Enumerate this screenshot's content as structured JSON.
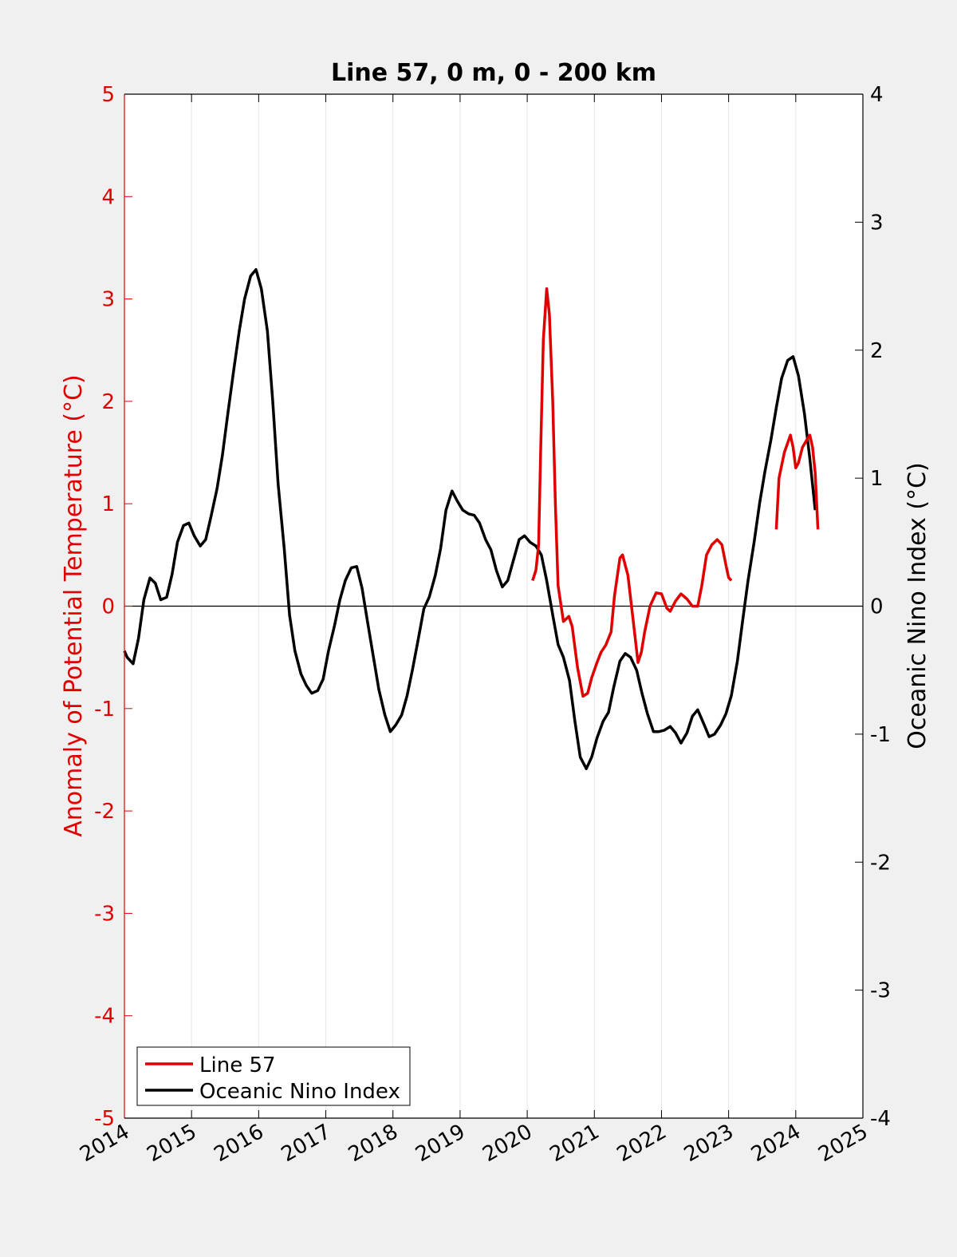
{
  "colors": {
    "line57": "#e00000",
    "oni": "#000000",
    "left_axis": "#e00000",
    "grid": "#e6e6e6",
    "figure_bg": "#f0f0f0",
    "plot_bg": "#ffffff"
  },
  "chart_data": {
    "type": "line",
    "title": "Line 57, 0 m, 0 - 200 km",
    "xlabel": "",
    "ylabel_left": "Anomaly of Potential Temperature (°C)",
    "ylabel_right": "Oceanic Nino Index (°C)",
    "xlim": [
      2014,
      2025
    ],
    "ylim_left": [
      -5,
      5
    ],
    "ylim_right": [
      -4,
      4
    ],
    "x_ticks": [
      "2014",
      "2015",
      "2016",
      "2017",
      "2018",
      "2019",
      "2020",
      "2021",
      "2022",
      "2023",
      "2024",
      "2025"
    ],
    "y_ticks_left": [
      "5",
      "4",
      "3",
      "2",
      "1",
      "0",
      "-1",
      "-2",
      "-3",
      "-4",
      "-5"
    ],
    "y_ticks_right": [
      "4",
      "3",
      "2",
      "1",
      "0",
      "-1",
      "-2",
      "-3",
      "-4"
    ],
    "grid": "vertical",
    "legend_position": "bottom-left",
    "legend": [
      "Line 57",
      "Oceanic Nino Index"
    ],
    "series": [
      {
        "name": "Line 57",
        "axis": "left",
        "segments": [
          [
            [
              2020.08,
              0.25
            ],
            [
              2020.13,
              0.35
            ],
            [
              2020.17,
              0.6
            ],
            [
              2020.2,
              1.5
            ],
            [
              2020.24,
              2.6
            ],
            [
              2020.29,
              3.1
            ],
            [
              2020.33,
              2.85
            ],
            [
              2020.38,
              2.0
            ],
            [
              2020.42,
              1.0
            ],
            [
              2020.46,
              0.2
            ],
            [
              2020.54,
              -0.15
            ],
            [
              2020.62,
              -0.1
            ],
            [
              2020.67,
              -0.2
            ],
            [
              2020.75,
              -0.6
            ],
            [
              2020.83,
              -0.88
            ],
            [
              2020.9,
              -0.85
            ],
            [
              2020.96,
              -0.7
            ],
            [
              2021.04,
              -0.55
            ],
            [
              2021.1,
              -0.45
            ],
            [
              2021.17,
              -0.38
            ],
            [
              2021.25,
              -0.25
            ],
            [
              2021.3,
              0.1
            ],
            [
              2021.38,
              0.47
            ],
            [
              2021.42,
              0.5
            ],
            [
              2021.5,
              0.3
            ],
            [
              2021.58,
              -0.15
            ],
            [
              2021.65,
              -0.55
            ],
            [
              2021.7,
              -0.45
            ],
            [
              2021.75,
              -0.25
            ],
            [
              2021.83,
              0.0
            ],
            [
              2021.92,
              0.13
            ],
            [
              2022.0,
              0.12
            ],
            [
              2022.08,
              -0.02
            ],
            [
              2022.13,
              -0.05
            ],
            [
              2022.21,
              0.05
            ],
            [
              2022.29,
              0.12
            ],
            [
              2022.38,
              0.07
            ],
            [
              2022.46,
              0.0
            ],
            [
              2022.54,
              0.0
            ],
            [
              2022.6,
              0.2
            ],
            [
              2022.67,
              0.5
            ],
            [
              2022.75,
              0.6
            ],
            [
              2022.83,
              0.65
            ],
            [
              2022.9,
              0.6
            ],
            [
              2022.96,
              0.4
            ],
            [
              2023.0,
              0.28
            ],
            [
              2023.04,
              0.25
            ]
          ],
          [
            [
              2023.71,
              0.75
            ],
            [
              2023.75,
              1.25
            ],
            [
              2023.83,
              1.5
            ],
            [
              2023.92,
              1.67
            ],
            [
              2023.96,
              1.55
            ],
            [
              2024.0,
              1.35
            ],
            [
              2024.04,
              1.4
            ],
            [
              2024.1,
              1.55
            ],
            [
              2024.17,
              1.63
            ],
            [
              2024.21,
              1.67
            ],
            [
              2024.25,
              1.55
            ],
            [
              2024.29,
              1.3
            ],
            [
              2024.33,
              0.75
            ]
          ]
        ]
      },
      {
        "name": "Oceanic Nino Index",
        "axis": "right",
        "points": [
          [
            2014.0,
            -0.35
          ],
          [
            2014.04,
            -0.4
          ],
          [
            2014.13,
            -0.45
          ],
          [
            2014.21,
            -0.25
          ],
          [
            2014.29,
            0.05
          ],
          [
            2014.38,
            0.22
          ],
          [
            2014.46,
            0.18
          ],
          [
            2014.54,
            0.05
          ],
          [
            2014.63,
            0.07
          ],
          [
            2014.71,
            0.25
          ],
          [
            2014.79,
            0.5
          ],
          [
            2014.88,
            0.63
          ],
          [
            2014.96,
            0.65
          ],
          [
            2015.04,
            0.55
          ],
          [
            2015.13,
            0.47
          ],
          [
            2015.21,
            0.52
          ],
          [
            2015.29,
            0.7
          ],
          [
            2015.38,
            0.92
          ],
          [
            2015.46,
            1.18
          ],
          [
            2015.54,
            1.5
          ],
          [
            2015.63,
            1.85
          ],
          [
            2015.71,
            2.15
          ],
          [
            2015.79,
            2.4
          ],
          [
            2015.88,
            2.58
          ],
          [
            2015.96,
            2.63
          ],
          [
            2016.04,
            2.48
          ],
          [
            2016.13,
            2.15
          ],
          [
            2016.21,
            1.6
          ],
          [
            2016.29,
            0.95
          ],
          [
            2016.38,
            0.45
          ],
          [
            2016.46,
            -0.07
          ],
          [
            2016.54,
            -0.35
          ],
          [
            2016.63,
            -0.53
          ],
          [
            2016.71,
            -0.62
          ],
          [
            2016.79,
            -0.68
          ],
          [
            2016.88,
            -0.66
          ],
          [
            2016.96,
            -0.57
          ],
          [
            2017.04,
            -0.35
          ],
          [
            2017.13,
            -0.15
          ],
          [
            2017.21,
            0.05
          ],
          [
            2017.29,
            0.2
          ],
          [
            2017.38,
            0.3
          ],
          [
            2017.46,
            0.31
          ],
          [
            2017.54,
            0.14
          ],
          [
            2017.63,
            -0.15
          ],
          [
            2017.71,
            -0.4
          ],
          [
            2017.79,
            -0.65
          ],
          [
            2017.88,
            -0.85
          ],
          [
            2017.96,
            -0.98
          ],
          [
            2018.04,
            -0.93
          ],
          [
            2018.13,
            -0.85
          ],
          [
            2018.21,
            -0.7
          ],
          [
            2018.29,
            -0.5
          ],
          [
            2018.38,
            -0.25
          ],
          [
            2018.46,
            -0.02
          ],
          [
            2018.54,
            0.07
          ],
          [
            2018.63,
            0.24
          ],
          [
            2018.71,
            0.45
          ],
          [
            2018.79,
            0.75
          ],
          [
            2018.88,
            0.9
          ],
          [
            2018.96,
            0.82
          ],
          [
            2019.04,
            0.75
          ],
          [
            2019.13,
            0.72
          ],
          [
            2019.21,
            0.71
          ],
          [
            2019.29,
            0.65
          ],
          [
            2019.38,
            0.52
          ],
          [
            2019.46,
            0.44
          ],
          [
            2019.54,
            0.28
          ],
          [
            2019.63,
            0.15
          ],
          [
            2019.71,
            0.2
          ],
          [
            2019.79,
            0.35
          ],
          [
            2019.88,
            0.52
          ],
          [
            2019.96,
            0.55
          ],
          [
            2020.04,
            0.5
          ],
          [
            2020.13,
            0.47
          ],
          [
            2020.21,
            0.4
          ],
          [
            2020.29,
            0.2
          ],
          [
            2020.38,
            -0.07
          ],
          [
            2020.46,
            -0.3
          ],
          [
            2020.54,
            -0.4
          ],
          [
            2020.63,
            -0.58
          ],
          [
            2020.71,
            -0.9
          ],
          [
            2020.79,
            -1.18
          ],
          [
            2020.88,
            -1.27
          ],
          [
            2020.96,
            -1.18
          ],
          [
            2021.04,
            -1.03
          ],
          [
            2021.13,
            -0.9
          ],
          [
            2021.21,
            -0.83
          ],
          [
            2021.29,
            -0.63
          ],
          [
            2021.38,
            -0.43
          ],
          [
            2021.46,
            -0.37
          ],
          [
            2021.54,
            -0.4
          ],
          [
            2021.63,
            -0.5
          ],
          [
            2021.71,
            -0.68
          ],
          [
            2021.79,
            -0.84
          ],
          [
            2021.88,
            -0.98
          ],
          [
            2021.96,
            -0.98
          ],
          [
            2022.04,
            -0.97
          ],
          [
            2022.13,
            -0.94
          ],
          [
            2022.21,
            -0.99
          ],
          [
            2022.29,
            -1.07
          ],
          [
            2022.38,
            -0.99
          ],
          [
            2022.46,
            -0.86
          ],
          [
            2022.54,
            -0.81
          ],
          [
            2022.63,
            -0.92
          ],
          [
            2022.71,
            -1.02
          ],
          [
            2022.79,
            -1.0
          ],
          [
            2022.88,
            -0.93
          ],
          [
            2022.96,
            -0.84
          ],
          [
            2023.04,
            -0.7
          ],
          [
            2023.13,
            -0.43
          ],
          [
            2023.21,
            -0.11
          ],
          [
            2023.29,
            0.2
          ],
          [
            2023.38,
            0.5
          ],
          [
            2023.46,
            0.8
          ],
          [
            2023.54,
            1.05
          ],
          [
            2023.63,
            1.3
          ],
          [
            2023.71,
            1.55
          ],
          [
            2023.79,
            1.78
          ],
          [
            2023.88,
            1.92
          ],
          [
            2023.96,
            1.95
          ],
          [
            2024.04,
            1.8
          ],
          [
            2024.13,
            1.5
          ],
          [
            2024.21,
            1.15
          ],
          [
            2024.29,
            0.75
          ]
        ]
      }
    ]
  }
}
